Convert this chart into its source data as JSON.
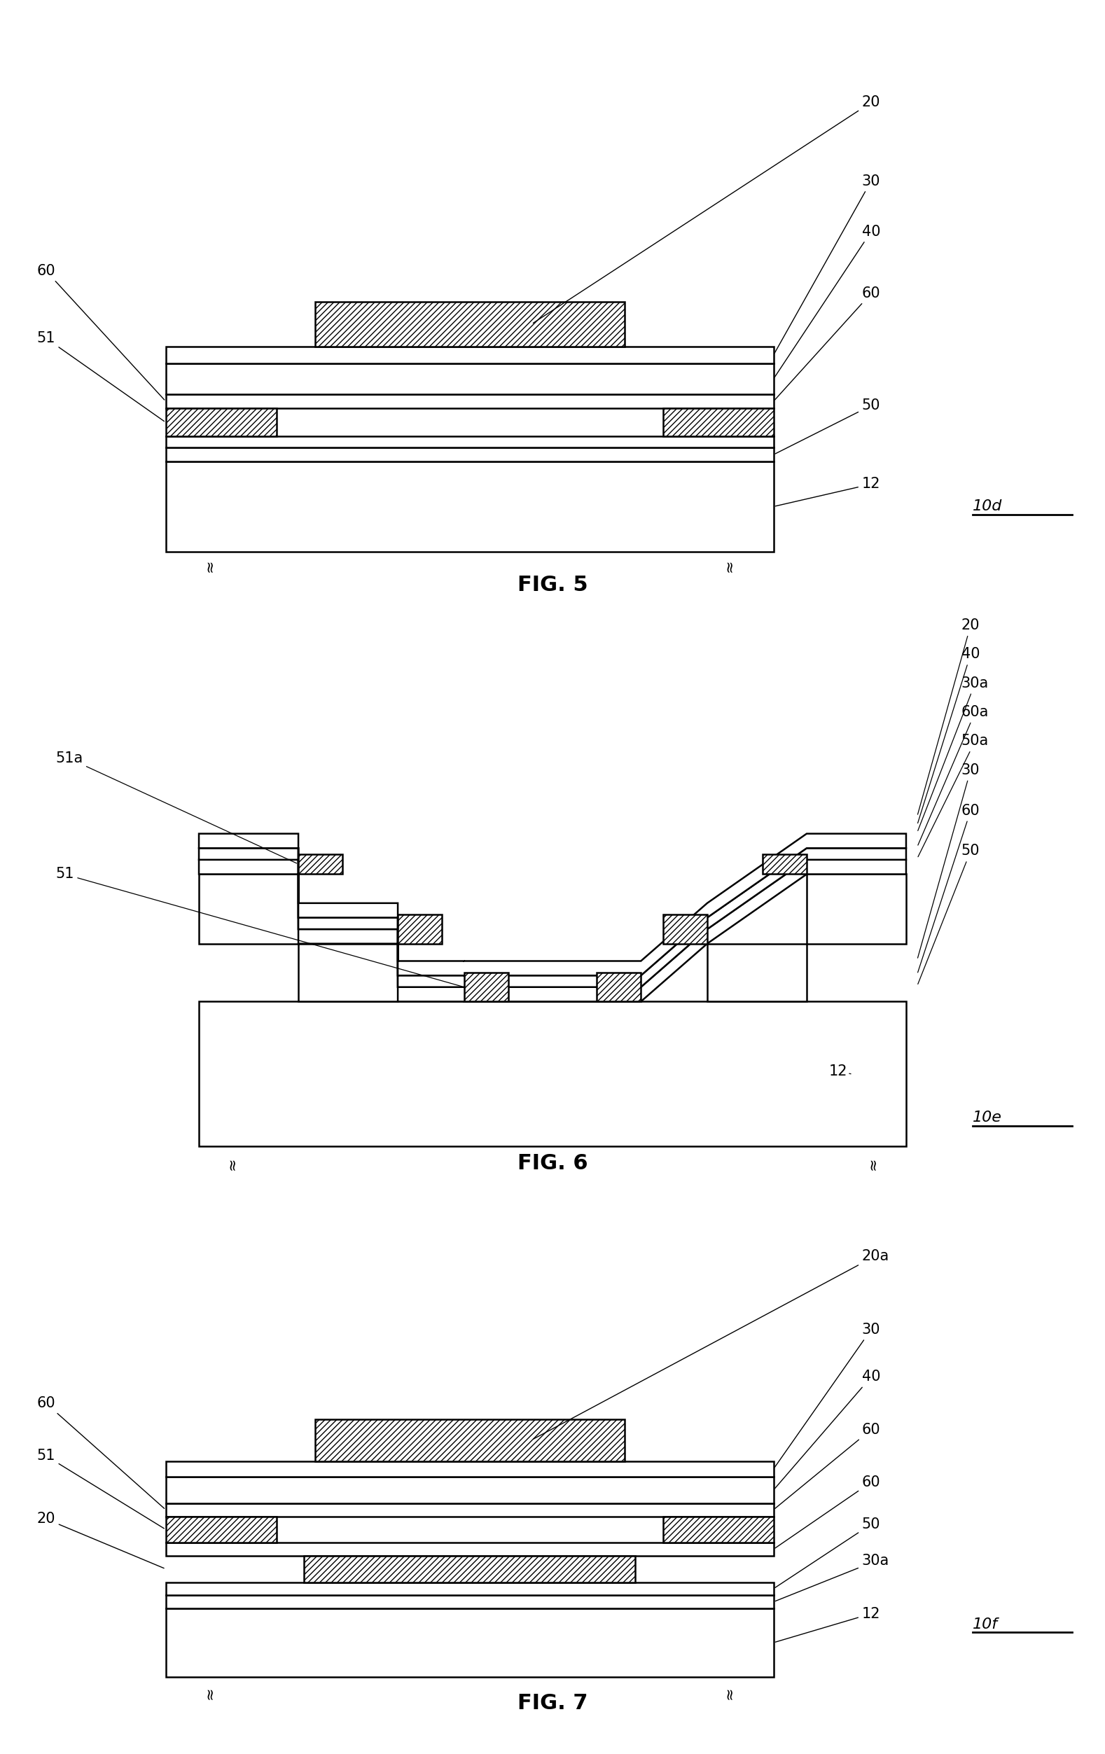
{
  "bg_color": "#ffffff",
  "lw": 1.8,
  "hatch": "////",
  "fig5_label": "FIG. 5",
  "fig5_device": "10d",
  "fig6_label": "FIG. 6",
  "fig6_device": "10e",
  "fig7_label": "FIG. 7",
  "fig7_device": "10f"
}
